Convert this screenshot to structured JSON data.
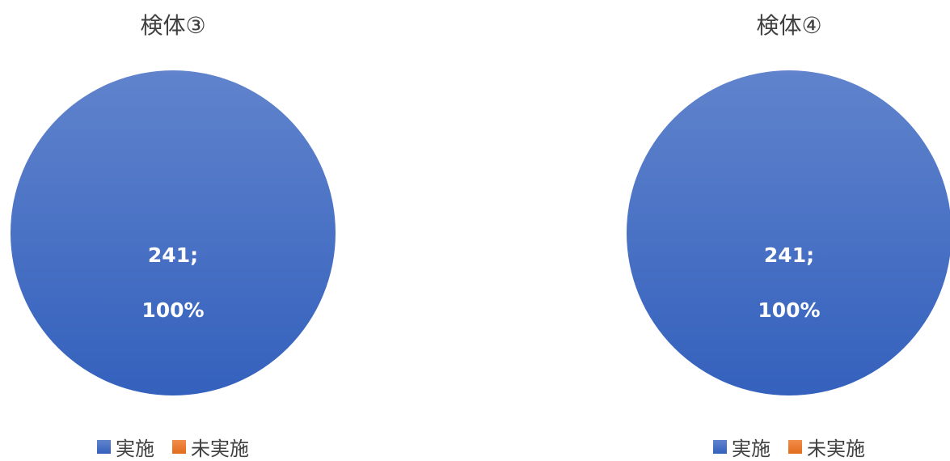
{
  "chart_data": [
    {
      "type": "pie",
      "title": "検体③",
      "categories": [
        "実施",
        "未実施"
      ],
      "values": [
        241,
        0
      ],
      "percentages": [
        "100%",
        "0%"
      ],
      "data_labels": [
        {
          "value": "241;",
          "percent": "100%"
        }
      ],
      "colors": [
        "#4472c4",
        "#ed7d31"
      ],
      "legend": {
        "position": "bottom",
        "entries": [
          "実施",
          "未実施"
        ]
      }
    },
    {
      "type": "pie",
      "title": "検体④",
      "categories": [
        "実施",
        "未実施"
      ],
      "values": [
        241,
        0
      ],
      "percentages": [
        "100%",
        "0%"
      ],
      "data_labels": [
        {
          "value": "241;",
          "percent": "100%"
        }
      ],
      "colors": [
        "#4472c4",
        "#ed7d31"
      ],
      "legend": {
        "position": "bottom",
        "entries": [
          "実施",
          "未実施"
        ]
      }
    }
  ]
}
